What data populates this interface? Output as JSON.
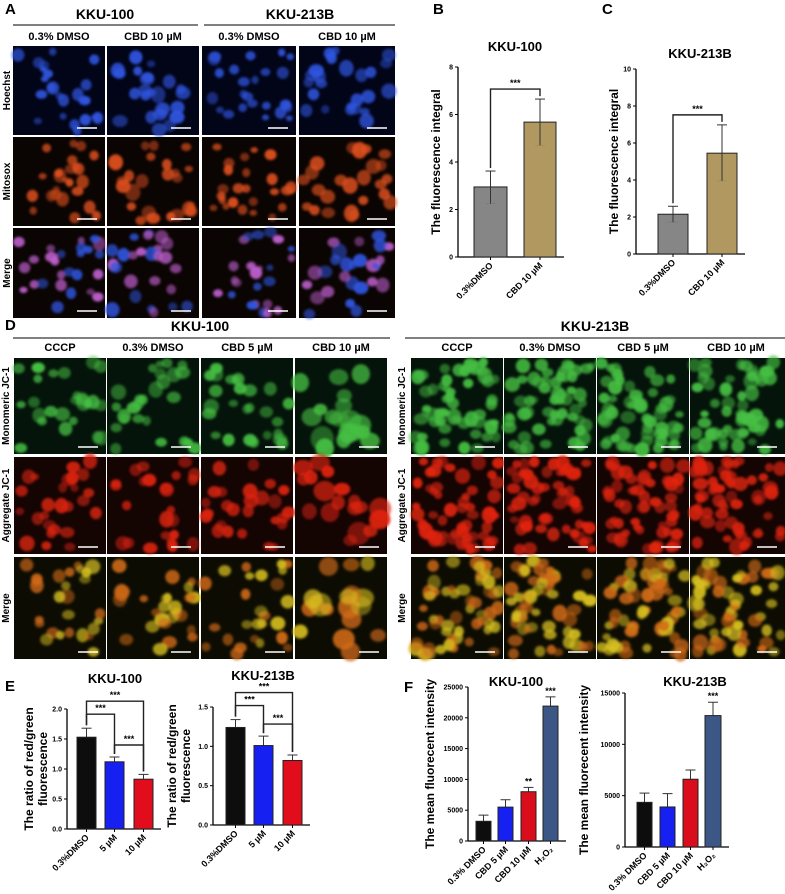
{
  "panel_labels": {
    "A": "A",
    "B": "B",
    "C": "C",
    "D": "D",
    "E": "E",
    "F": "F"
  },
  "panel_a": {
    "groups": [
      "KKU-100",
      "KKU-213B"
    ],
    "columns": [
      "0.3% DMSO",
      "CBD 10 µM",
      "0.3% DMSO",
      "CBD 10 µM"
    ],
    "rows": [
      "Hoechst",
      "Mitosox",
      "Merge"
    ],
    "row_colors": [
      "#2f55e0",
      "#e0501e",
      "#c060d0"
    ]
  },
  "panel_d": {
    "groups": [
      "KKU-100",
      "KKU-213B"
    ],
    "columns": [
      "CCCP",
      "0.3% DMSO",
      "CBD 5 µM",
      "CBD 10 µM"
    ],
    "rows": [
      "Monomeric JC-1",
      "Aggregate JC-1",
      "Merge"
    ],
    "row_colors": [
      "#46c043",
      "#e02410",
      "#d8c020"
    ]
  },
  "chart_data": [
    {
      "id": "B",
      "type": "bar",
      "title": "KKU-100",
      "ylabel": [
        "The fluorescence integral"
      ],
      "ylim": [
        0,
        8
      ],
      "ticks": [
        "0",
        "2",
        "4",
        "6",
        "8"
      ],
      "categories": [
        "0.3%DMSO",
        "CBD 10 µM"
      ],
      "values": [
        2.95,
        5.68
      ],
      "err_low": [
        2.25,
        4.7
      ],
      "err_high": [
        3.62,
        6.65
      ],
      "colors": [
        "#7f7f7f",
        "#ad9257"
      ],
      "comparisons": [
        {
          "a": 0,
          "b": 1,
          "label": "***"
        }
      ],
      "bar_labels": [
        "",
        ""
      ]
    },
    {
      "id": "C",
      "type": "bar",
      "title": "KKU-213B",
      "ylabel": [
        "The fluorescence integral"
      ],
      "ylim": [
        0,
        10
      ],
      "ticks": [
        "0",
        "2",
        "4",
        "6",
        "8",
        "10"
      ],
      "categories": [
        "0.3%DMSO",
        "CBD 10 µM"
      ],
      "values": [
        2.15,
        5.45
      ],
      "err_low": [
        1.72,
        3.95
      ],
      "err_high": [
        2.58,
        6.98
      ],
      "colors": [
        "#7f7f7f",
        "#ad9257"
      ],
      "comparisons": [
        {
          "a": 0,
          "b": 1,
          "label": "***"
        }
      ],
      "bar_labels": [
        "",
        ""
      ]
    },
    {
      "id": "E1",
      "type": "bar",
      "title": "KKU-100",
      "ylabel": [
        "The ratio of red/green",
        "fluorescence"
      ],
      "ylim": [
        0,
        2.0
      ],
      "ticks": [
        "0.0",
        "0.5",
        "1.0",
        "1.5",
        "2.0"
      ],
      "categories": [
        "0.3%DMSO",
        "5 µM",
        "10 µM"
      ],
      "values": [
        1.53,
        1.12,
        0.83
      ],
      "err_low": [
        1.53,
        1.12,
        0.83
      ],
      "err_high": [
        1.68,
        1.2,
        0.91
      ],
      "colors": [
        "#000000",
        "#0a14f0",
        "#e00010"
      ],
      "comparisons": [
        {
          "a": 0,
          "b": 1,
          "label": "***"
        },
        {
          "a": 1,
          "b": 2,
          "label": "***"
        },
        {
          "a": 0,
          "b": 2,
          "label": "***"
        }
      ],
      "bar_labels": [
        "",
        "",
        ""
      ]
    },
    {
      "id": "E2",
      "type": "bar",
      "title": "KKU-213B",
      "ylabel": [
        "The ratio of red/green",
        "fluorescence"
      ],
      "ylim": [
        0,
        1.5
      ],
      "ticks": [
        "0.0",
        "0.5",
        "1.0",
        "1.5"
      ],
      "categories": [
        "0.3%DMSO",
        "5 µM",
        "10 µM"
      ],
      "values": [
        1.24,
        1.01,
        0.82
      ],
      "err_low": [
        1.24,
        1.01,
        0.82
      ],
      "err_high": [
        1.34,
        1.13,
        0.89
      ],
      "colors": [
        "#000000",
        "#0a14f0",
        "#e00010"
      ],
      "comparisons": [
        {
          "a": 0,
          "b": 1,
          "label": "***"
        },
        {
          "a": 1,
          "b": 2,
          "label": "***"
        },
        {
          "a": 0,
          "b": 2,
          "label": "***"
        }
      ],
      "bar_labels": [
        "",
        "",
        ""
      ]
    },
    {
      "id": "F1",
      "type": "bar",
      "title": "KKU-100",
      "ylabel": [
        "The mean fluorecent  intensity"
      ],
      "ylim": [
        0,
        25000
      ],
      "ticks": [
        "0",
        "5000",
        "10000",
        "15000",
        "20000",
        "25000"
      ],
      "categories": [
        "0.3% DMSO",
        "CBD 5 µM",
        "CBD 10 µM",
        "H₂O₂"
      ],
      "values": [
        3200,
        5500,
        8000,
        21900
      ],
      "err_low": [
        3200,
        5500,
        8000,
        21900
      ],
      "err_high": [
        4200,
        6700,
        8700,
        23400
      ],
      "colors": [
        "#000000",
        "#0a14f0",
        "#d80010",
        "#324e80"
      ],
      "comparisons": [],
      "bar_labels": [
        "",
        "",
        "**",
        "***"
      ]
    },
    {
      "id": "F2",
      "type": "bar",
      "title": "KKU-213B",
      "ylabel": [
        "The mean fluorecent  intensity"
      ],
      "ylim": [
        0,
        15000
      ],
      "ticks": [
        "0",
        "5000",
        "10000",
        "15000"
      ],
      "categories": [
        "0.3% DMSO",
        "CBD 5 µM",
        "CBD 10 µM",
        "H₂O₂"
      ],
      "values": [
        4350,
        3900,
        6600,
        12800
      ],
      "err_low": [
        4350,
        3900,
        6600,
        12800
      ],
      "err_high": [
        5250,
        5200,
        7500,
        14100
      ],
      "colors": [
        "#000000",
        "#0a14f0",
        "#d80010",
        "#324e80"
      ],
      "comparisons": [],
      "bar_labels": [
        "",
        "",
        "",
        "***"
      ]
    }
  ]
}
